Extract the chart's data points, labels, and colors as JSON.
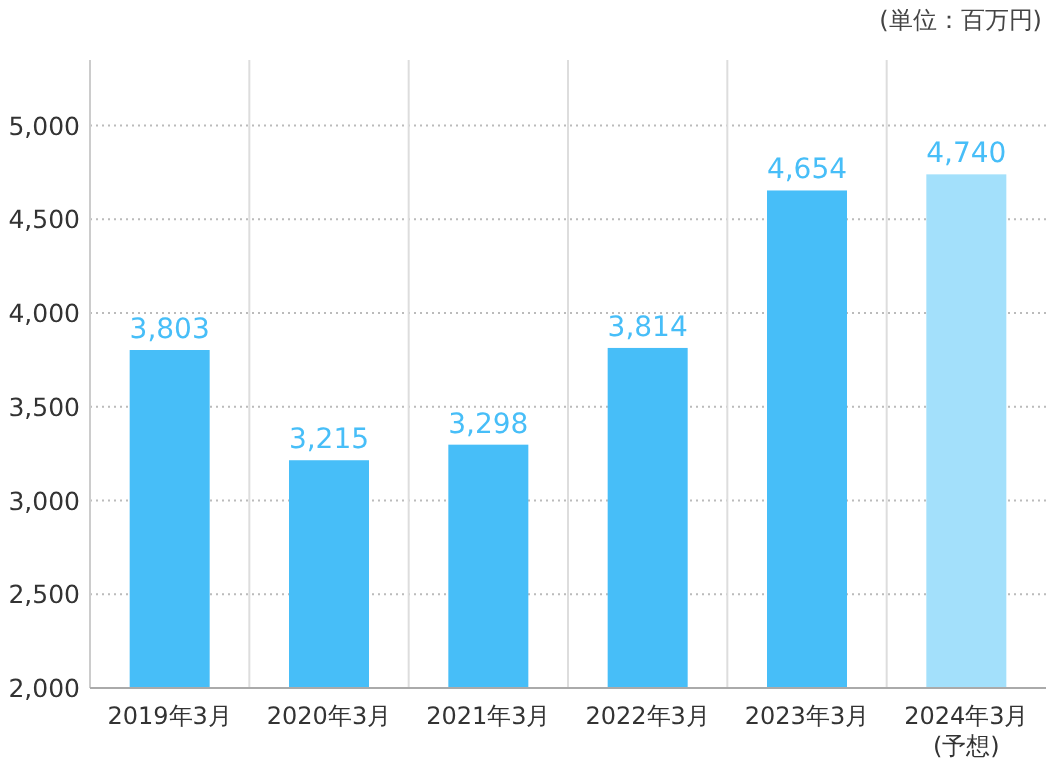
{
  "chart_data": {
    "type": "bar",
    "annotations": [
      "(単位：百万円)"
    ],
    "categories": [
      "2019年3月",
      "2020年3月",
      "2021年3月",
      "2022年3月",
      "2023年3月",
      "2024年3月\n(予想)"
    ],
    "values": [
      3803,
      3215,
      3298,
      3814,
      4654,
      4740
    ],
    "colors": [
      "#47bef8",
      "#47bef8",
      "#47bef8",
      "#47bef8",
      "#47bef8",
      "#a3e0fb"
    ],
    "value_labels": [
      "3,803",
      "3,215",
      "3,298",
      "3,814",
      "4,654",
      "4,740"
    ],
    "ylim": [
      2000,
      5350
    ],
    "yticks": [
      {
        "value": 2000,
        "label": "2,000"
      },
      {
        "value": 2500,
        "label": "2,500"
      },
      {
        "value": 3000,
        "label": "3,000"
      },
      {
        "value": 3500,
        "label": "3,500"
      },
      {
        "value": 4000,
        "label": "4,000"
      },
      {
        "value": 4500,
        "label": "4,500"
      },
      {
        "value": 5000,
        "label": "5,000"
      }
    ],
    "grid": true
  }
}
